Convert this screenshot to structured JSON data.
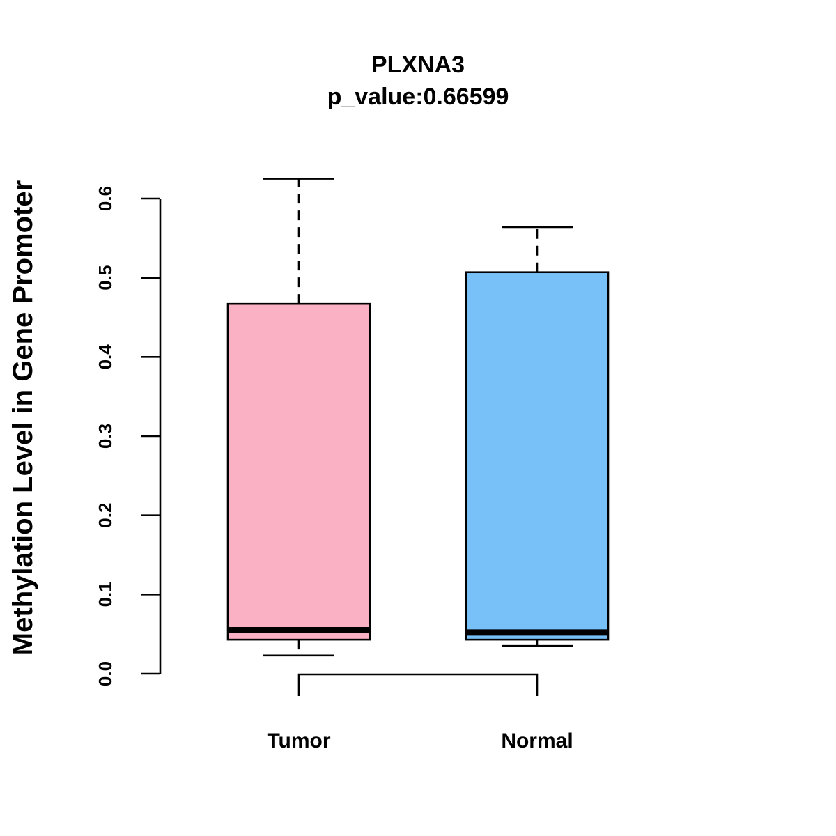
{
  "chart_data": {
    "type": "boxplot",
    "title": "PLXNA3",
    "subtitle": "p_value:0.66599",
    "xlabel": "",
    "ylabel": "Methylation Level in Gene Promoter",
    "ylim": [
      0,
      0.6
    ],
    "yticks": [
      "0.0",
      "0.1",
      "0.2",
      "0.3",
      "0.4",
      "0.5",
      "0.6"
    ],
    "categories": [
      "Tumor",
      "Normal"
    ],
    "series": [
      {
        "name": "Tumor",
        "color": "#FBB1C4",
        "whisker_low": 0.023,
        "q1": 0.043,
        "median": 0.055,
        "q3": 0.467,
        "whisker_high": 0.625
      },
      {
        "name": "Normal",
        "color": "#77C1F8",
        "whisker_low": 0.035,
        "q1": 0.043,
        "median": 0.052,
        "q3": 0.507,
        "whisker_high": 0.564
      }
    ],
    "bracket": true
  }
}
